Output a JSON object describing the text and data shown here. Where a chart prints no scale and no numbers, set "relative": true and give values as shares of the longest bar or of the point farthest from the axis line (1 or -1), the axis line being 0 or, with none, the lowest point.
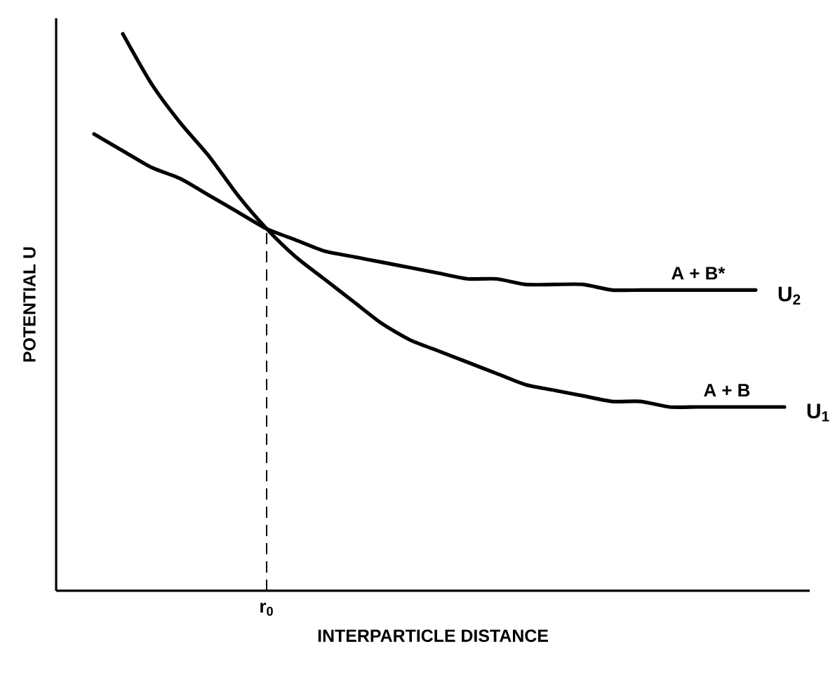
{
  "chart_data": {
    "type": "line",
    "relative": true,
    "xlabel": "INTERPARTICLE DISTANCE",
    "ylabel": "POTENTIAL U",
    "categories": [
      null,
      null,
      null,
      null,
      null,
      null,
      null,
      null,
      null,
      null,
      null,
      null,
      null,
      null,
      null,
      null,
      null,
      null,
      null,
      null,
      null,
      null,
      null,
      null,
      null,
      null
    ],
    "series": [
      {
        "name": "U$_{2}$",
        "color": "#000000",
        "values": [
          0.82,
          0.79,
          0.76,
          0.74,
          0.71,
          0.68,
          0.65,
          0.63,
          0.61,
          0.6,
          0.59,
          0.58,
          0.57,
          0.56,
          0.56,
          0.55,
          0.55,
          0.55,
          0.54,
          0.54,
          0.54,
          0.54,
          0.54,
          0.54,
          null,
          null
        ]
      },
      {
        "name": "U$_{1}$",
        "color": "#000000",
        "values": [
          null,
          1.0,
          0.91,
          0.84,
          0.78,
          0.71,
          0.65,
          0.6,
          0.56,
          0.52,
          0.48,
          0.45,
          0.43,
          0.41,
          0.39,
          0.37,
          0.36,
          0.35,
          0.34,
          0.34,
          0.33,
          0.33,
          0.33,
          0.33,
          0.33,
          null
        ]
      }
    ],
    "annotations": [
      "A + B*",
      "A + B",
      "r$_{0}$"
    ],
    "legend": false,
    "marker": "none",
    "line_style": "solid"
  }
}
